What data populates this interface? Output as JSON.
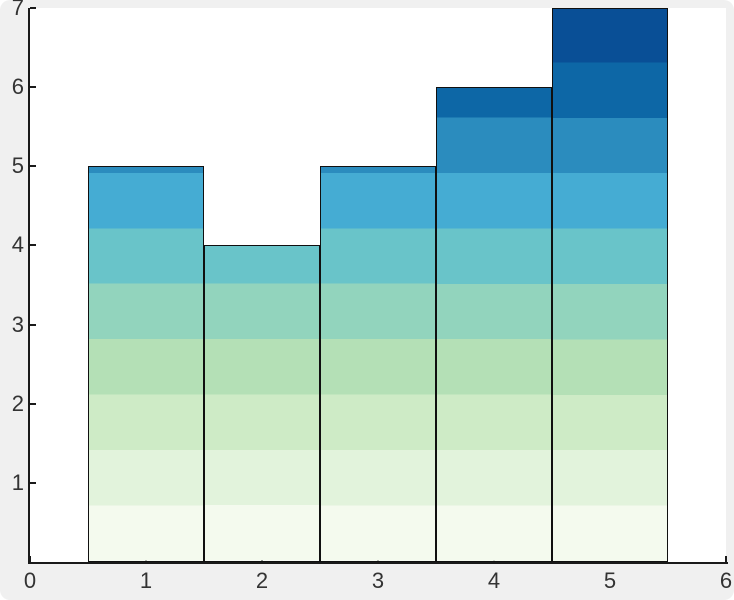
{
  "chart_data": {
    "type": "bar",
    "title": "",
    "xlabel": "",
    "ylabel": "",
    "x": [
      1,
      2,
      3,
      4,
      5
    ],
    "values": [
      5,
      4,
      5,
      6,
      7
    ],
    "bar_width": 1,
    "xlim": [
      0,
      6
    ],
    "ylim": [
      0,
      7
    ],
    "x_tick_values": [
      0,
      1,
      2,
      3,
      4,
      5,
      6
    ],
    "x_tick_labels": [
      "0",
      "1",
      "2",
      "3",
      "4",
      "5",
      "6"
    ],
    "y_tick_values": [
      1,
      2,
      3,
      4,
      5,
      6,
      7
    ],
    "y_tick_labels": [
      "1",
      "2",
      "3",
      "4",
      "5",
      "6",
      "7"
    ],
    "grid": false,
    "legend": null,
    "band_colors_bottom_to_top": [
      "#f4faee",
      "#e2f3dc",
      "#ceebc6",
      "#b4e0b6",
      "#92d4bd",
      "#69c4c9",
      "#45acd3",
      "#2b8cbe",
      "#0d67a6",
      "#094f96"
    ],
    "bar_edge_color": "#101010",
    "axis_color": "#1a1a1a",
    "tick_label_color": "#333333",
    "plot_bg": "#ffffff",
    "figure_bg": "#f0f0f0"
  }
}
